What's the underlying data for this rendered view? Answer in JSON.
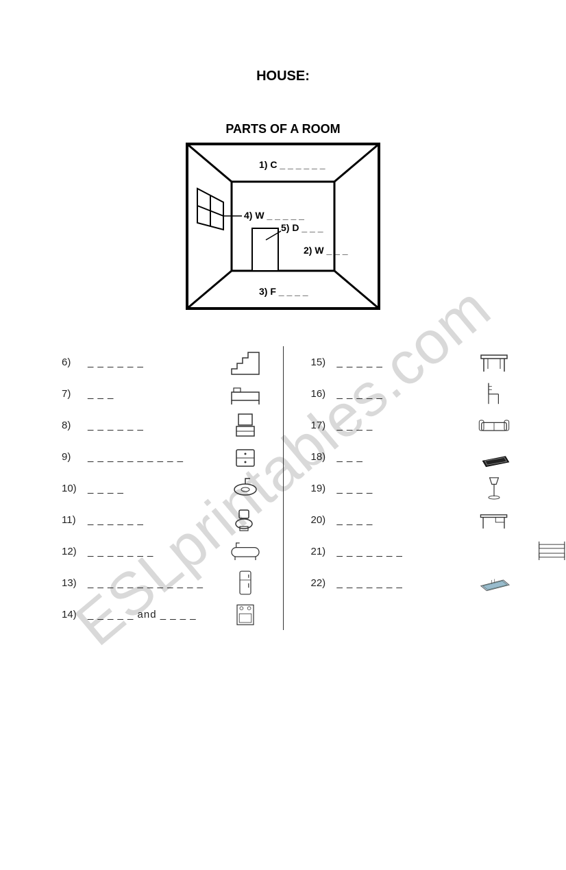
{
  "colors": {
    "background": "#ffffff",
    "text": "#000000",
    "watermark": "#d9d9d9",
    "divider": "#333333",
    "stroke": "#000000"
  },
  "typography": {
    "family": "Arial, sans-serif",
    "title_size_pt": 15,
    "diagram_title_size_pt": 14,
    "body_size_pt": 11,
    "room_label_size_pt": 11
  },
  "watermark_text": "ESLprintables.com",
  "title": "HOUSE:",
  "diagram": {
    "title": "PARTS OF A ROOM",
    "labels": {
      "ceiling": "1) C _ _ _ _ _ _",
      "window": "4) W _ _ _ _ _",
      "door": "5) D _ _ _",
      "wall": "2) W _ _ _",
      "floor": "3) F _ _ _ _"
    }
  },
  "items_left": [
    {
      "num": "6)",
      "blanks": "_ _ _ _ _ _",
      "icon": "stairs"
    },
    {
      "num": "7)",
      "blanks": "_ _ _",
      "icon": "bed"
    },
    {
      "num": "8)",
      "blanks": "_ _ _ _ _ _",
      "icon": "mirror"
    },
    {
      "num": "9)",
      "blanks": "_ _ _ _ _ _ _ _ _ _",
      "icon": "nightstand"
    },
    {
      "num": "10)",
      "blanks": "_ _ _ _",
      "icon": "sink"
    },
    {
      "num": "11)",
      "blanks": "_ _ _ _ _ _",
      "icon": "toilet"
    },
    {
      "num": "12)",
      "blanks": "_ _ _ _ _ _ _",
      "icon": "bathtub"
    },
    {
      "num": "13)",
      "blanks": "_ _ _ _ _ _ _ _ _ _ _ _",
      "icon": "fridge"
    },
    {
      "num": "14)",
      "blanks": "_ _ _ _ _  and  _ _ _ _",
      "icon": "stove"
    }
  ],
  "items_right": [
    {
      "num": "15)",
      "blanks": "_ _ _ _ _",
      "icon": "table"
    },
    {
      "num": "16)",
      "blanks": "_ _ _ _ _",
      "icon": "chair"
    },
    {
      "num": "17)",
      "blanks": "_ _ _ _",
      "icon": "sofa"
    },
    {
      "num": "18)",
      "blanks": "_ _ _",
      "icon": "rug"
    },
    {
      "num": "19)",
      "blanks": "_ _ _ _",
      "icon": "lamp"
    },
    {
      "num": "20)",
      "blanks": "_ _ _ _",
      "icon": "desk"
    },
    {
      "num": "21)",
      "blanks": "_ _ _ _ _ _ _",
      "icon": "bunkbed",
      "overflow": true
    },
    {
      "num": "22)",
      "blanks": "_ _ _ _ _ _ _",
      "icon": "pool"
    }
  ]
}
